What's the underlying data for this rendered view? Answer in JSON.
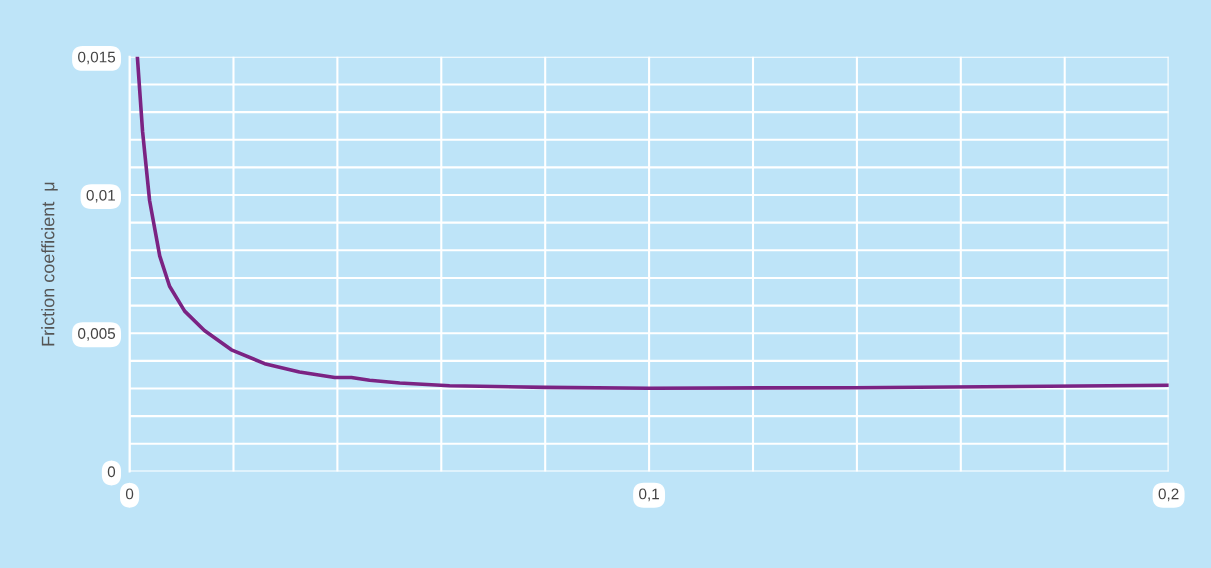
{
  "chart_data": {
    "type": "line",
    "ylabel": "Friction coefficient  μ",
    "x": [
      0.0015,
      0.0025,
      0.00385,
      0.0058,
      0.0077,
      0.0106,
      0.0144,
      0.0196,
      0.026,
      0.0327,
      0.0395,
      0.0427,
      0.0462,
      0.052,
      0.0616,
      0.08,
      0.1,
      0.139,
      0.177,
      0.2
    ],
    "series": [
      {
        "color": "#7b2383",
        "values": [
          0.015,
          0.0123,
          0.0098,
          0.0078,
          0.0067,
          0.0058,
          0.0051,
          0.0044,
          0.0039,
          0.0036,
          0.0034,
          0.0034,
          0.0033,
          0.0032,
          0.0031,
          0.00304,
          0.00301,
          0.00303,
          0.00308,
          0.00312
        ]
      }
    ],
    "xlim": [
      0,
      0.2
    ],
    "ylim": [
      0,
      0.015
    ],
    "xticks": [
      {
        "value": 0,
        "label": "0"
      },
      {
        "value": 0.02,
        "label": null
      },
      {
        "value": 0.04,
        "label": null
      },
      {
        "value": 0.06,
        "label": null
      },
      {
        "value": 0.08,
        "label": null
      },
      {
        "value": 0.1,
        "label": "0,1"
      },
      {
        "value": 0.12,
        "label": null
      },
      {
        "value": 0.14,
        "label": null
      },
      {
        "value": 0.16,
        "label": null
      },
      {
        "value": 0.18,
        "label": null
      },
      {
        "value": 0.2,
        "label": "0,2"
      }
    ],
    "yticks": [
      {
        "value": 0,
        "label": "0"
      },
      {
        "value": 0.001,
        "label": null
      },
      {
        "value": 0.002,
        "label": null
      },
      {
        "value": 0.003,
        "label": null
      },
      {
        "value": 0.004,
        "label": null
      },
      {
        "value": 0.005,
        "label": "0,005"
      },
      {
        "value": 0.006,
        "label": null
      },
      {
        "value": 0.007,
        "label": null
      },
      {
        "value": 0.008,
        "label": null
      },
      {
        "value": 0.009,
        "label": null
      },
      {
        "value": 0.01,
        "label": "0,01"
      },
      {
        "value": 0.011,
        "label": null
      },
      {
        "value": 0.012,
        "label": null
      },
      {
        "value": 0.013,
        "label": null
      },
      {
        "value": 0.014,
        "label": null
      },
      {
        "value": 0.015,
        "label": "0,015"
      }
    ],
    "grid": true
  }
}
